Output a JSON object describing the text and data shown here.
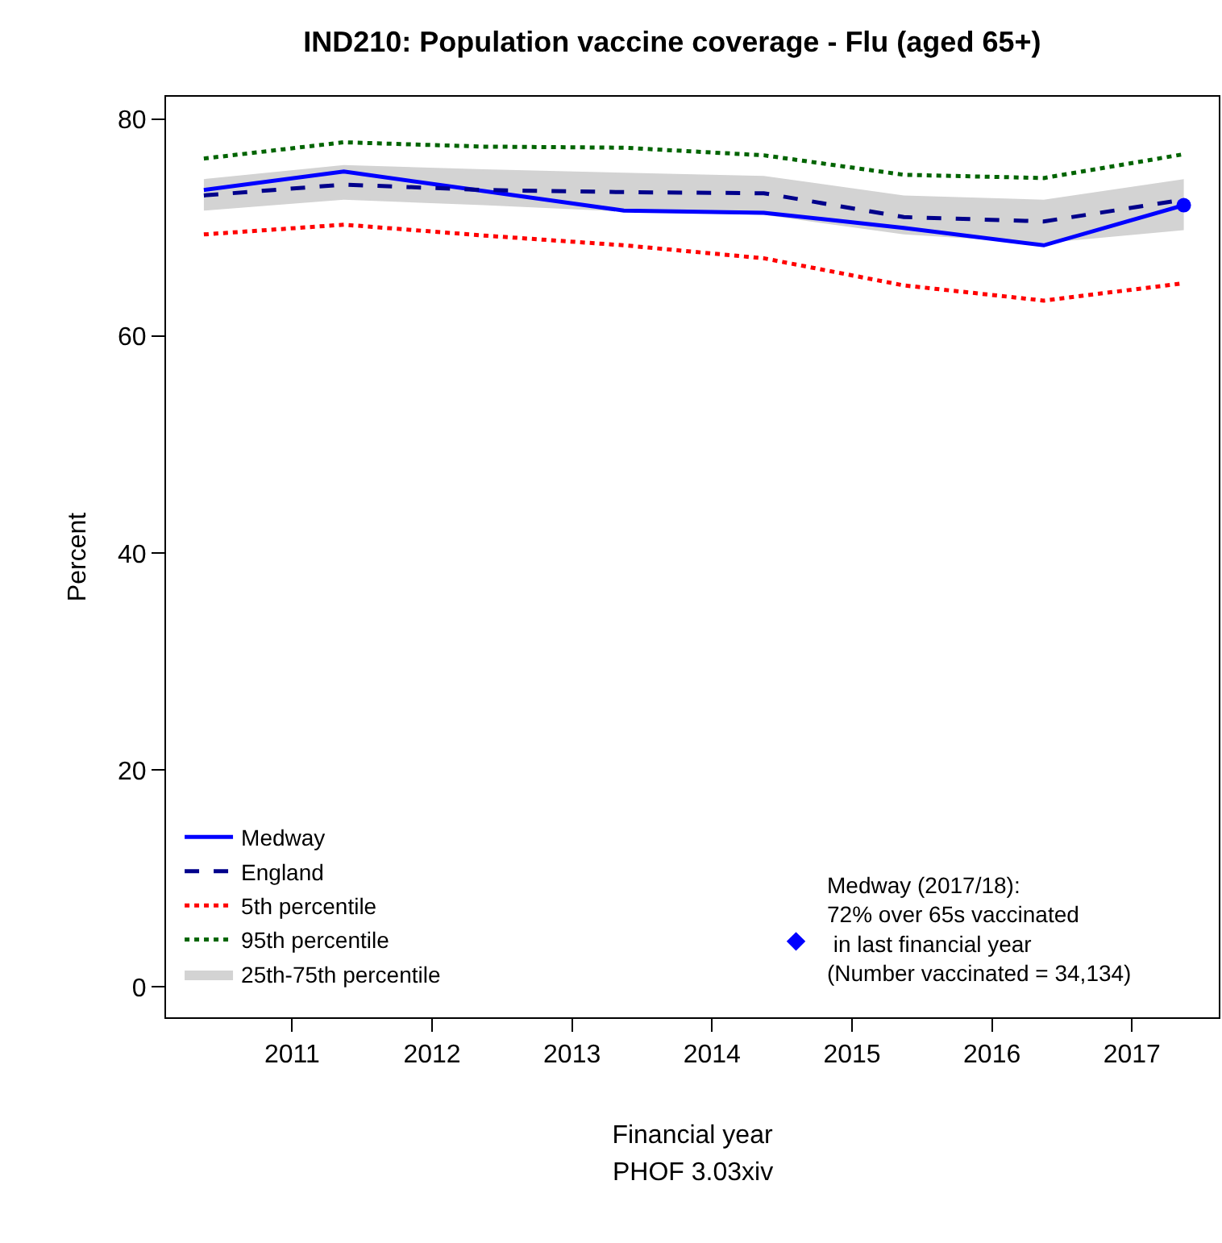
{
  "chart_data": {
    "type": "line",
    "title": "IND210: Population vaccine coverage - Flu (aged 65+)",
    "xlabel": "Financial year",
    "ylabel": "Percent",
    "x": [
      2010.37,
      2011.37,
      2012.37,
      2013.37,
      2014.37,
      2015.37,
      2016.37,
      2017.37
    ],
    "series": [
      {
        "name": "Medway",
        "color": "#0000ff",
        "line_style": "solid",
        "values": [
          73.5,
          75.2,
          73.4,
          71.6,
          71.4,
          70.0,
          68.4,
          72.1
        ]
      },
      {
        "name": "England",
        "color": "#00008b",
        "line_style": "dashed",
        "values": [
          73.0,
          74.0,
          73.5,
          73.3,
          73.2,
          71.0,
          70.6,
          72.6
        ]
      },
      {
        "name": "5th percentile",
        "color": "#ff0000",
        "line_style": "dotted",
        "values": [
          69.4,
          70.3,
          69.3,
          68.4,
          67.2,
          64.7,
          63.3,
          64.9
        ]
      },
      {
        "name": "95th percentile",
        "color": "#006400",
        "line_style": "dotted",
        "values": [
          76.4,
          77.9,
          77.5,
          77.4,
          76.7,
          74.9,
          74.6,
          76.8
        ]
      },
      {
        "name": "25th-75th percentile",
        "type": "area",
        "color": "#d3d3d3",
        "values": [
          null,
          null,
          null,
          null,
          null,
          null,
          null,
          null
        ],
        "lower": [
          71.6,
          72.6,
          72.1,
          71.5,
          71.2,
          69.4,
          68.6,
          69.8
        ],
        "upper": [
          74.5,
          75.8,
          75.4,
          75.1,
          74.8,
          73.0,
          72.6,
          74.5
        ]
      },
      {
        "type": "scatter",
        "color": "#0000ff",
        "marker": "circle",
        "x": [
          2017.37
        ],
        "values": [
          72.1
        ]
      },
      {
        "type": "scatter",
        "color": "#0000ff",
        "marker": "diamond",
        "x": [
          2014.6
        ],
        "values": [
          4.2
        ]
      }
    ],
    "annotations": [
      "Medway (2017/18):\n72% over 65s vaccinated\n in last financial year\n(Number vaccinated = 34,134)",
      "PHOF 3.03xiv"
    ],
    "xlim": [
      2010.1,
      2017.62
    ],
    "ylim": [
      -2.8,
      82.1
    ],
    "xticks": [
      2011,
      2012,
      2013,
      2014,
      2015,
      2016,
      2017
    ],
    "yticks": [
      0,
      20,
      40,
      60,
      80
    ],
    "legend": "bottom left"
  }
}
